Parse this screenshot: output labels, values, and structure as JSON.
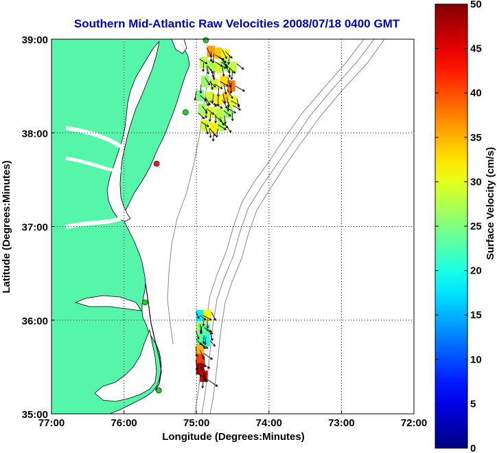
{
  "chart_data": {
    "type": "scatter",
    "title": "Southern Mid-Atlantic Raw Velocities 2008/07/18 0400 GMT",
    "xlabel": "Longitude (Degrees:Minutes)",
    "ylabel": "Latitude (Degrees:Minutes)",
    "xlim": [
      -77,
      -72
    ],
    "ylim": [
      35,
      39
    ],
    "x_ticks": [
      -77,
      -76,
      -75,
      -74,
      -73,
      -72
    ],
    "x_tick_labels": [
      "77:00",
      "76:00",
      "75:00",
      "74:00",
      "73:00",
      "72:00"
    ],
    "y_ticks": [
      35,
      36,
      37,
      38,
      39
    ],
    "y_tick_labels": [
      "35:00",
      "36:00",
      "37:00",
      "38:00",
      "39:00"
    ],
    "grid": true,
    "colorbar": {
      "label": "Surface Velocity (cm/s)",
      "range": [
        0,
        50
      ],
      "ticks": [
        0,
        5,
        10,
        15,
        20,
        25,
        30,
        35,
        40,
        45,
        50
      ],
      "colormap": "jet"
    },
    "colors": {
      "land": "#55f5aa",
      "title": "#0000cc",
      "grid": "#000000",
      "bathymetry": "#888888",
      "coast": "#000000",
      "station_active": "#22cc22",
      "station_inactive": "#dd2222"
    },
    "stations": [
      {
        "lon": -74.87,
        "lat": 38.99,
        "status": "active"
      },
      {
        "lon": -75.15,
        "lat": 38.22,
        "status": "active"
      },
      {
        "lon": -75.55,
        "lat": 37.67,
        "status": "inactive"
      },
      {
        "lon": -75.71,
        "lat": 36.19,
        "status": "active"
      },
      {
        "lon": -75.52,
        "lat": 35.25,
        "status": "active"
      }
    ],
    "velocity_cells": [
      {
        "lon": -74.8,
        "lat": 38.87,
        "speed": 36
      },
      {
        "lon": -74.7,
        "lat": 38.85,
        "speed": 34
      },
      {
        "lon": -74.6,
        "lat": 38.83,
        "speed": 31
      },
      {
        "lon": -74.9,
        "lat": 38.75,
        "speed": 28
      },
      {
        "lon": -74.8,
        "lat": 38.72,
        "speed": 27
      },
      {
        "lon": -74.7,
        "lat": 38.7,
        "speed": 29
      },
      {
        "lon": -74.6,
        "lat": 38.72,
        "speed": 26
      },
      {
        "lon": -74.5,
        "lat": 38.7,
        "speed": 28
      },
      {
        "lon": -74.88,
        "lat": 38.55,
        "speed": 26
      },
      {
        "lon": -74.75,
        "lat": 38.52,
        "speed": 29
      },
      {
        "lon": -74.62,
        "lat": 38.55,
        "speed": 33
      },
      {
        "lon": -74.52,
        "lat": 38.5,
        "speed": 38
      },
      {
        "lon": -74.95,
        "lat": 38.4,
        "speed": 25
      },
      {
        "lon": -74.82,
        "lat": 38.38,
        "speed": 29
      },
      {
        "lon": -74.7,
        "lat": 38.35,
        "speed": 32
      },
      {
        "lon": -74.58,
        "lat": 38.38,
        "speed": 34
      },
      {
        "lon": -74.5,
        "lat": 38.33,
        "speed": 30
      },
      {
        "lon": -74.92,
        "lat": 38.25,
        "speed": 27
      },
      {
        "lon": -74.8,
        "lat": 38.22,
        "speed": 30
      },
      {
        "lon": -74.68,
        "lat": 38.2,
        "speed": 28
      },
      {
        "lon": -74.56,
        "lat": 38.22,
        "speed": 26
      },
      {
        "lon": -74.88,
        "lat": 38.08,
        "speed": 29
      },
      {
        "lon": -74.76,
        "lat": 38.05,
        "speed": 32
      },
      {
        "lon": -74.65,
        "lat": 38.08,
        "speed": 27
      },
      {
        "lon": -74.95,
        "lat": 36.05,
        "speed": 18
      },
      {
        "lon": -74.85,
        "lat": 36.05,
        "speed": 31
      },
      {
        "lon": -74.95,
        "lat": 35.92,
        "speed": 26
      },
      {
        "lon": -74.87,
        "lat": 35.9,
        "speed": 23
      },
      {
        "lon": -74.95,
        "lat": 35.8,
        "speed": 24
      },
      {
        "lon": -74.87,
        "lat": 35.78,
        "speed": 20
      },
      {
        "lon": -74.95,
        "lat": 35.68,
        "speed": 35
      },
      {
        "lon": -74.95,
        "lat": 35.58,
        "speed": 41
      },
      {
        "lon": -74.95,
        "lat": 35.48,
        "speed": 48
      },
      {
        "lon": -74.9,
        "lat": 35.4,
        "speed": 45
      }
    ]
  }
}
